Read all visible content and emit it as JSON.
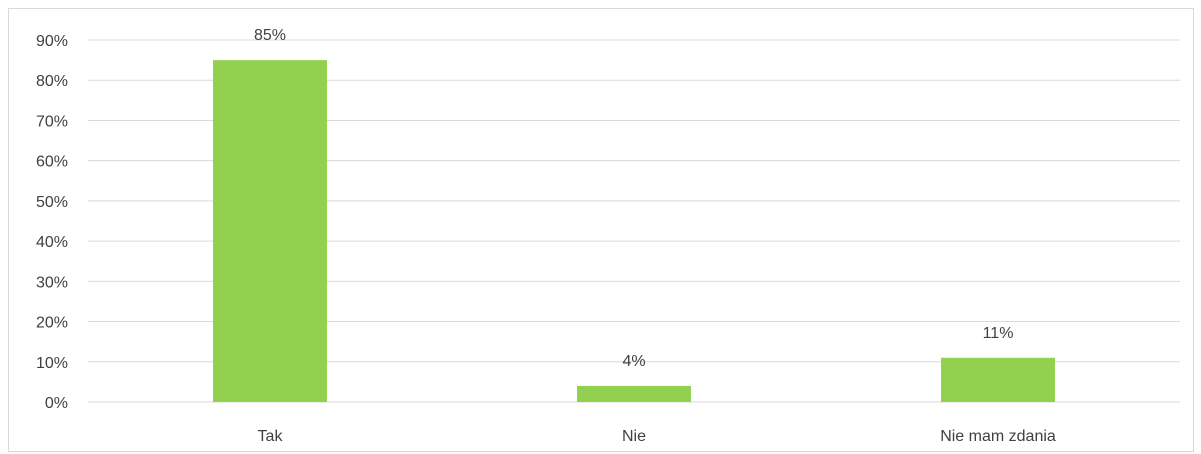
{
  "chart_data": {
    "type": "bar",
    "categories": [
      "Tak",
      "Nie",
      "Nie mam zdania"
    ],
    "values": [
      85,
      4,
      11
    ],
    "data_labels": [
      "85%",
      "4%",
      "11%"
    ],
    "title": "",
    "xlabel": "",
    "ylabel": "",
    "ylim": [
      0,
      90
    ],
    "yticks": [
      0,
      10,
      20,
      30,
      40,
      50,
      60,
      70,
      80,
      90
    ],
    "ytick_labels": [
      "0%",
      "10%",
      "20%",
      "30%",
      "40%",
      "50%",
      "60%",
      "70%",
      "80%",
      "90%"
    ],
    "grid": true,
    "legend": "none",
    "colors": {
      "bar": "#92d050",
      "grid": "#d9d9d9",
      "text": "#404040",
      "frame": "#d9d9d9"
    }
  }
}
